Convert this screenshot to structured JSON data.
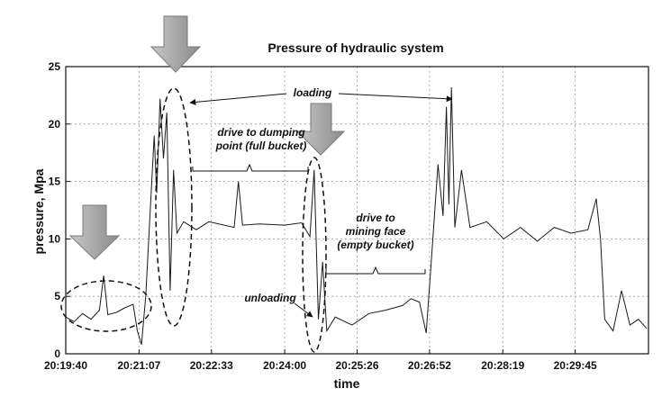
{
  "chart_data": {
    "type": "line",
    "title": "Pressure of hydraulic system",
    "xlabel": "time",
    "ylabel": "pressure, Mpa",
    "ylim": [
      0,
      25
    ],
    "xlim": [
      "20:19:40",
      "20:31:12"
    ],
    "grid": true,
    "y_ticks": [
      "0",
      "5",
      "10",
      "15",
      "20",
      "25"
    ],
    "x_ticks": [
      "20:19:40",
      "20:21:07",
      "20:22:33",
      "20:24:00",
      "20:25:26",
      "20:26:52",
      "20:28:19",
      "20:29:45"
    ],
    "series": [
      {
        "color": "#1a1a1a",
        "points": [
          [
            "20:19:40",
            3.2
          ],
          [
            "20:19:50",
            2.8
          ],
          [
            "20:20:00",
            3.5
          ],
          [
            "20:20:10",
            3.0
          ],
          [
            "20:20:20",
            3.8
          ],
          [
            "20:20:25",
            6.8
          ],
          [
            "20:20:30",
            3.4
          ],
          [
            "20:20:40",
            3.6
          ],
          [
            "20:20:50",
            4.0
          ],
          [
            "20:21:00",
            4.3
          ],
          [
            "20:21:05",
            2.0
          ],
          [
            "20:21:10",
            0.8
          ],
          [
            "20:21:15",
            5.0
          ],
          [
            "20:21:20",
            12.0
          ],
          [
            "20:21:25",
            19.0
          ],
          [
            "20:21:28",
            14.0
          ],
          [
            "20:21:32",
            22.2
          ],
          [
            "20:21:36",
            17.0
          ],
          [
            "20:21:40",
            21.0
          ],
          [
            "20:21:44",
            5.5
          ],
          [
            "20:21:48",
            16.0
          ],
          [
            "20:21:52",
            10.5
          ],
          [
            "20:22:00",
            11.5
          ],
          [
            "20:22:15",
            10.8
          ],
          [
            "20:22:30",
            11.5
          ],
          [
            "20:23:00",
            11.0
          ],
          [
            "20:23:05",
            15.0
          ],
          [
            "20:23:10",
            11.2
          ],
          [
            "20:23:30",
            11.3
          ],
          [
            "20:24:00",
            11.2
          ],
          [
            "20:24:20",
            11.4
          ],
          [
            "20:24:30",
            10.2
          ],
          [
            "20:24:35",
            16.0
          ],
          [
            "20:24:40",
            3.0
          ],
          [
            "20:24:45",
            8.0
          ],
          [
            "20:24:50",
            2.0
          ],
          [
            "20:25:00",
            3.2
          ],
          [
            "20:25:20",
            2.5
          ],
          [
            "20:25:40",
            3.5
          ],
          [
            "20:26:00",
            3.8
          ],
          [
            "20:26:20",
            4.2
          ],
          [
            "20:26:30",
            4.8
          ],
          [
            "20:26:40",
            4.5
          ],
          [
            "20:26:48",
            1.8
          ],
          [
            "20:26:55",
            9.0
          ],
          [
            "20:27:02",
            16.5
          ],
          [
            "20:27:08",
            12.0
          ],
          [
            "20:27:12",
            21.5
          ],
          [
            "20:27:15",
            13.0
          ],
          [
            "20:27:18",
            23.2
          ],
          [
            "20:27:22",
            11.0
          ],
          [
            "20:27:30",
            16.0
          ],
          [
            "20:27:40",
            11.0
          ],
          [
            "20:28:00",
            11.5
          ],
          [
            "20:28:20",
            10.0
          ],
          [
            "20:28:40",
            11.0
          ],
          [
            "20:29:00",
            9.8
          ],
          [
            "20:29:20",
            11.0
          ],
          [
            "20:29:40",
            10.5
          ],
          [
            "20:30:00",
            10.8
          ],
          [
            "20:30:10",
            13.5
          ],
          [
            "20:30:15",
            10.0
          ],
          [
            "20:30:20",
            3.0
          ],
          [
            "20:30:30",
            2.0
          ],
          [
            "20:30:40",
            5.5
          ],
          [
            "20:30:50",
            2.5
          ],
          [
            "20:31:00",
            3.0
          ],
          [
            "20:31:10",
            2.2
          ]
        ]
      }
    ],
    "annotations": {
      "loading": "loading",
      "drive_full_1": "drive to dumping",
      "drive_full_2": "point (full bucket)",
      "drive_empty_1": "drive to",
      "drive_empty_2": "mining face",
      "drive_empty_3": "(empty bucket)",
      "unloading": "unloading"
    }
  }
}
